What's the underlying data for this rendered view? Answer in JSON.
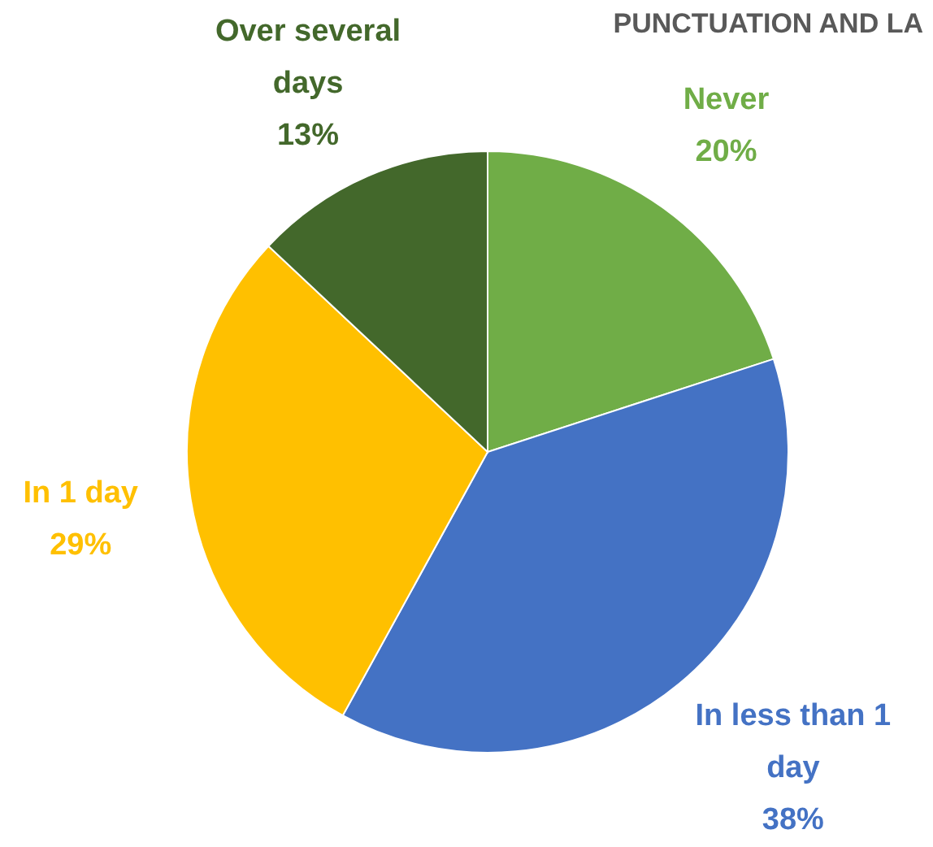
{
  "chart_data": {
    "type": "pie",
    "title": "PUNCTUATION AND LA",
    "categories": [
      "Never",
      "In less than 1 day",
      "In 1 day",
      "Over several days"
    ],
    "values": [
      20,
      38,
      29,
      13
    ],
    "colors": [
      "#70ad47",
      "#4472c4",
      "#ffc000",
      "#43682b"
    ],
    "value_labels": [
      "20%",
      "38%",
      "29%",
      "13%"
    ]
  }
}
